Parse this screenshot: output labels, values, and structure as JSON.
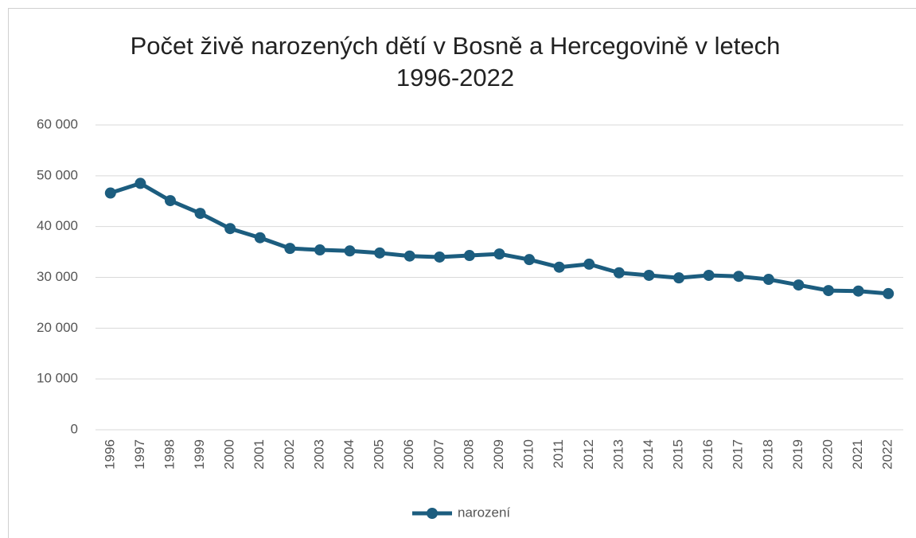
{
  "chart_data": {
    "type": "line",
    "title": "Počet živě narozených dětí v Bosně a Hercegovině v letech 1996-2022",
    "categories": [
      "1996",
      "1997",
      "1998",
      "1999",
      "2000",
      "2001",
      "2002",
      "2003",
      "2004",
      "2005",
      "2006",
      "2007",
      "2008",
      "2009",
      "2010",
      "2011",
      "2012",
      "2013",
      "2014",
      "2015",
      "2016",
      "2017",
      "2018",
      "2019",
      "2020",
      "2021",
      "2022"
    ],
    "series": [
      {
        "name": "narození",
        "color": "#1c5d7f",
        "values": [
          46600,
          48500,
          45100,
          42600,
          39600,
          37800,
          35700,
          35400,
          35200,
          34800,
          34200,
          34000,
          34300,
          34600,
          33500,
          32000,
          32600,
          30900,
          30400,
          29900,
          30400,
          30200,
          29600,
          28500,
          27400,
          27300,
          26800
        ]
      }
    ],
    "ylim": [
      0,
      60000
    ],
    "yticks": [
      0,
      {
        "value": 10000,
        "label": "10 000"
      },
      {
        "value": 20000,
        "label": "20 000"
      },
      {
        "value": 30000,
        "label": "30 000"
      },
      {
        "value": 40000,
        "label": "40 000"
      },
      {
        "value": 50000,
        "label": "50 000"
      },
      {
        "value": 60000,
        "label": "60 000"
      }
    ],
    "grid": true,
    "legend": "bottom"
  }
}
